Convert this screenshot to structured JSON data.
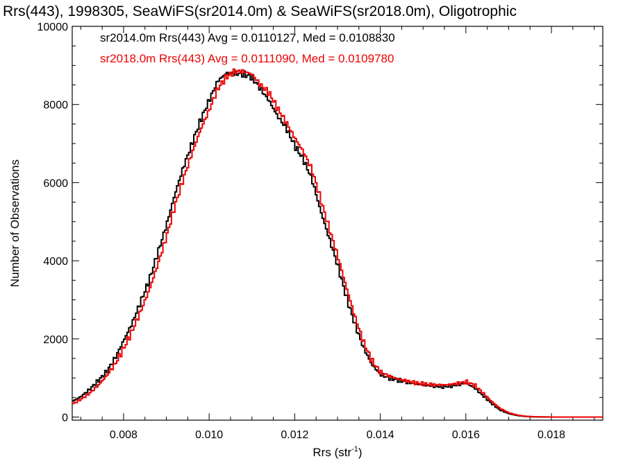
{
  "chart_data": {
    "type": "line",
    "title": "Rrs(443), 1998305, SeaWiFS(sr2014.0m) & SeaWiFS(sr2018.0m), Oligotrophic",
    "xlabel_main": "Rrs (str",
    "xlabel_sup": "-1",
    "xlabel_close": ")",
    "ylabel": "Number of Observations",
    "xlim": [
      0.0068,
      0.0192
    ],
    "ylim": [
      -80,
      10000
    ],
    "x_ticks": [
      {
        "value": 0.008,
        "label": "0.008"
      },
      {
        "value": 0.01,
        "label": "0.010"
      },
      {
        "value": 0.012,
        "label": "0.012"
      },
      {
        "value": 0.014,
        "label": "0.014"
      },
      {
        "value": 0.016,
        "label": "0.016"
      },
      {
        "value": 0.018,
        "label": "0.018"
      }
    ],
    "y_ticks": [
      {
        "value": 0,
        "label": "0"
      },
      {
        "value": 2000,
        "label": "2000"
      },
      {
        "value": 4000,
        "label": "4000"
      },
      {
        "value": 6000,
        "label": "6000"
      },
      {
        "value": 8000,
        "label": "8000"
      },
      {
        "value": 10000,
        "label": "10000"
      }
    ],
    "grid": false,
    "legend_position": "top-left",
    "series": [
      {
        "legend": "sr2014.0m Rrs(443) Avg = 0.0110127, Med = 0.0108830",
        "color": "#000000",
        "points": [
          [
            0.0068,
            400
          ],
          [
            0.007,
            520
          ],
          [
            0.0072,
            700
          ],
          [
            0.0074,
            920
          ],
          [
            0.0076,
            1150
          ],
          [
            0.0078,
            1500
          ],
          [
            0.008,
            1950
          ],
          [
            0.0082,
            2400
          ],
          [
            0.0084,
            2950
          ],
          [
            0.0086,
            3500
          ],
          [
            0.0088,
            4200
          ],
          [
            0.009,
            4900
          ],
          [
            0.0092,
            5700
          ],
          [
            0.0094,
            6400
          ],
          [
            0.0096,
            7000
          ],
          [
            0.0098,
            7600
          ],
          [
            0.01,
            8100
          ],
          [
            0.0102,
            8600
          ],
          [
            0.0104,
            8800
          ],
          [
            0.0106,
            8800
          ],
          [
            0.0108,
            8780
          ],
          [
            0.011,
            8700
          ],
          [
            0.0112,
            8400
          ],
          [
            0.0114,
            8100
          ],
          [
            0.0116,
            7700
          ],
          [
            0.0118,
            7400
          ],
          [
            0.012,
            6950
          ],
          [
            0.0122,
            6600
          ],
          [
            0.0124,
            6100
          ],
          [
            0.0126,
            5300
          ],
          [
            0.0128,
            4600
          ],
          [
            0.013,
            3900
          ],
          [
            0.0132,
            3100
          ],
          [
            0.0134,
            2400
          ],
          [
            0.0136,
            1800
          ],
          [
            0.0138,
            1350
          ],
          [
            0.014,
            1100
          ],
          [
            0.0142,
            1000
          ],
          [
            0.0144,
            950
          ],
          [
            0.0146,
            900
          ],
          [
            0.0148,
            850
          ],
          [
            0.015,
            820
          ],
          [
            0.0152,
            800
          ],
          [
            0.0154,
            780
          ],
          [
            0.0156,
            790
          ],
          [
            0.0158,
            820
          ],
          [
            0.016,
            870
          ],
          [
            0.0162,
            750
          ],
          [
            0.0164,
            550
          ],
          [
            0.0166,
            350
          ],
          [
            0.0168,
            180
          ],
          [
            0.017,
            90
          ],
          [
            0.0172,
            40
          ],
          [
            0.0174,
            15
          ],
          [
            0.0176,
            5
          ],
          [
            0.0178,
            2
          ],
          [
            0.018,
            0
          ],
          [
            0.0185,
            0
          ],
          [
            0.019,
            0
          ],
          [
            0.0192,
            0
          ]
        ]
      },
      {
        "legend": "sr2018.0m Rrs(443) Avg = 0.0111090, Med = 0.0109780",
        "color": "#ee0000",
        "points": [
          [
            0.0068,
            330
          ],
          [
            0.007,
            450
          ],
          [
            0.0072,
            600
          ],
          [
            0.0074,
            800
          ],
          [
            0.0076,
            1050
          ],
          [
            0.0078,
            1350
          ],
          [
            0.008,
            1750
          ],
          [
            0.0082,
            2200
          ],
          [
            0.0084,
            2700
          ],
          [
            0.0086,
            3250
          ],
          [
            0.0088,
            3900
          ],
          [
            0.009,
            4600
          ],
          [
            0.0092,
            5400
          ],
          [
            0.0094,
            6100
          ],
          [
            0.0096,
            6750
          ],
          [
            0.0098,
            7350
          ],
          [
            0.01,
            7850
          ],
          [
            0.0102,
            8400
          ],
          [
            0.0104,
            8700
          ],
          [
            0.0106,
            8850
          ],
          [
            0.0108,
            8850
          ],
          [
            0.011,
            8780
          ],
          [
            0.0112,
            8500
          ],
          [
            0.0114,
            8300
          ],
          [
            0.0116,
            7900
          ],
          [
            0.0118,
            7550
          ],
          [
            0.012,
            7150
          ],
          [
            0.0122,
            6800
          ],
          [
            0.0124,
            6350
          ],
          [
            0.0126,
            5600
          ],
          [
            0.0128,
            4850
          ],
          [
            0.013,
            4150
          ],
          [
            0.0132,
            3350
          ],
          [
            0.0134,
            2600
          ],
          [
            0.0136,
            1950
          ],
          [
            0.0138,
            1450
          ],
          [
            0.014,
            1150
          ],
          [
            0.0142,
            1050
          ],
          [
            0.0144,
            980
          ],
          [
            0.0146,
            930
          ],
          [
            0.0148,
            880
          ],
          [
            0.015,
            850
          ],
          [
            0.0152,
            830
          ],
          [
            0.0154,
            820
          ],
          [
            0.0156,
            830
          ],
          [
            0.0158,
            860
          ],
          [
            0.016,
            900
          ],
          [
            0.0162,
            820
          ],
          [
            0.0164,
            620
          ],
          [
            0.0166,
            400
          ],
          [
            0.0168,
            220
          ],
          [
            0.017,
            110
          ],
          [
            0.0172,
            50
          ],
          [
            0.0174,
            20
          ],
          [
            0.0176,
            8
          ],
          [
            0.0178,
            3
          ],
          [
            0.018,
            0
          ],
          [
            0.0185,
            0
          ],
          [
            0.019,
            0
          ],
          [
            0.0192,
            0
          ]
        ]
      }
    ]
  }
}
